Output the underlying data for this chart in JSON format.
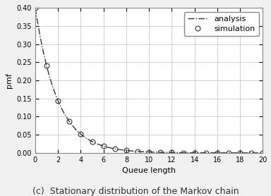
{
  "title": "(c)  Stationary distribution of the Markov chain",
  "xlabel": "Queue length",
  "ylabel": "pmf",
  "xlim": [
    0,
    20
  ],
  "ylim": [
    0,
    0.4
  ],
  "xticks": [
    0,
    2,
    4,
    6,
    8,
    10,
    12,
    14,
    16,
    18,
    20
  ],
  "yticks": [
    0,
    0.05,
    0.1,
    0.15,
    0.2,
    0.25,
    0.3,
    0.35,
    0.4
  ],
  "analysis_label": "analysis",
  "simulation_label": "simulation",
  "rho": 0.6,
  "line_color": "#333333",
  "circle_color": "#333333",
  "background_color": "#f0f0f0",
  "plot_bg_color": "#ffffff",
  "grid_color": "#c0c0c0",
  "legend_fontsize": 8,
  "axis_fontsize": 8,
  "tick_fontsize": 7,
  "title_fontsize": 9
}
